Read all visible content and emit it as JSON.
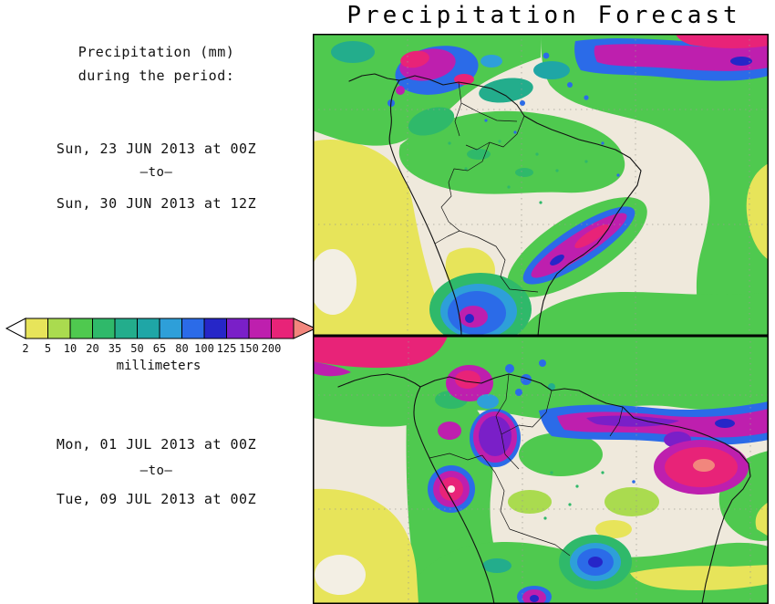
{
  "title": "Precipitation Forecast",
  "sidebar": {
    "heading_line1": "Precipitation (mm)",
    "heading_line2": "during the period:",
    "period1": {
      "start": "Sun, 23 JUN 2013 at 00Z",
      "separator": "–to–",
      "end": "Sun, 30 JUN 2013 at 12Z"
    },
    "period2": {
      "start": "Mon, 01 JUL 2013 at 00Z",
      "separator": "–to–",
      "end": "Tue, 09 JUL 2013 at 00Z"
    }
  },
  "legend": {
    "unit_label": "millimeters",
    "tick_labels": [
      "2",
      "5",
      "10",
      "20",
      "35",
      "50",
      "65",
      "80",
      "100",
      "125",
      "150",
      "200"
    ],
    "segment_colors": [
      "#E7E45A",
      "#AADB4F",
      "#4FC94F",
      "#2FB96A",
      "#23AD8C",
      "#1FA6A6",
      "#2E9FD9",
      "#2B6BE8",
      "#2626C8",
      "#7A1FC8",
      "#BE1FAE",
      "#E82378"
    ],
    "underflow_color": "#FFFFFF",
    "overflow_color": "#F2867D"
  }
}
